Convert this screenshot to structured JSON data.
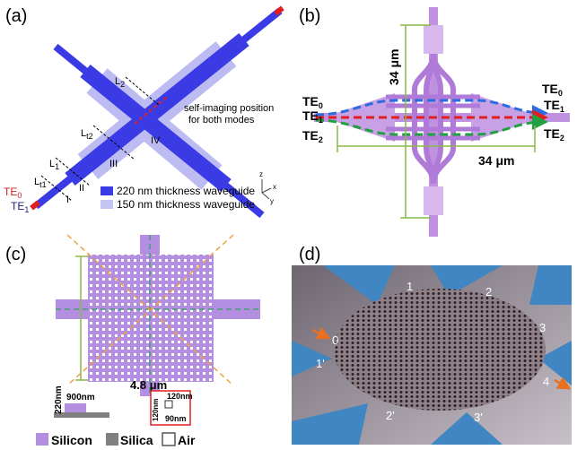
{
  "panels": {
    "a": {
      "label": "(a)",
      "l2": {
        "main": "L",
        "sub": "2"
      },
      "lt2": {
        "main": "L",
        "sub": "t2"
      },
      "l1": {
        "main": "L",
        "sub": "1"
      },
      "lt1": {
        "main": "L",
        "sub": "t1"
      },
      "self_imaging": [
        "self-imaging position",
        "for both modes"
      ],
      "regions": [
        "IV",
        "III",
        "II",
        "I"
      ],
      "te0": {
        "main": "TE",
        "sub": "0"
      },
      "te1": {
        "main": "TE",
        "sub": "1"
      },
      "legend": [
        "220 nm thickness waveguide",
        "150 nm thickness waveguide"
      ],
      "axes": [
        "z",
        "x",
        "y"
      ]
    },
    "b": {
      "label": "(b)",
      "vertical_dim": "34 μm",
      "horizontal_dim": "34 μm",
      "left_modes": [
        {
          "main": "TE",
          "sub": "0"
        },
        {
          "main": "TE",
          "sub": "1"
        },
        {
          "main": "TE",
          "sub": "2"
        }
      ],
      "right_modes": [
        {
          "main": "TE",
          "sub": "0"
        },
        {
          "main": "TE",
          "sub": "1"
        },
        {
          "main": "TE",
          "sub": "2"
        }
      ]
    },
    "c": {
      "label": "(c)",
      "width": "4.8 μm",
      "height_label": "220nm",
      "width_label": "900nm",
      "hole_width": "120nm",
      "hole_height": "120nm",
      "gap": "90nm",
      "legend": [
        "Silicon",
        "Silica",
        "Air"
      ]
    },
    "d": {
      "label": "(d)",
      "ports": [
        "0",
        "1",
        "2",
        "3",
        "4",
        "1'",
        "2'",
        "3'"
      ]
    }
  }
}
